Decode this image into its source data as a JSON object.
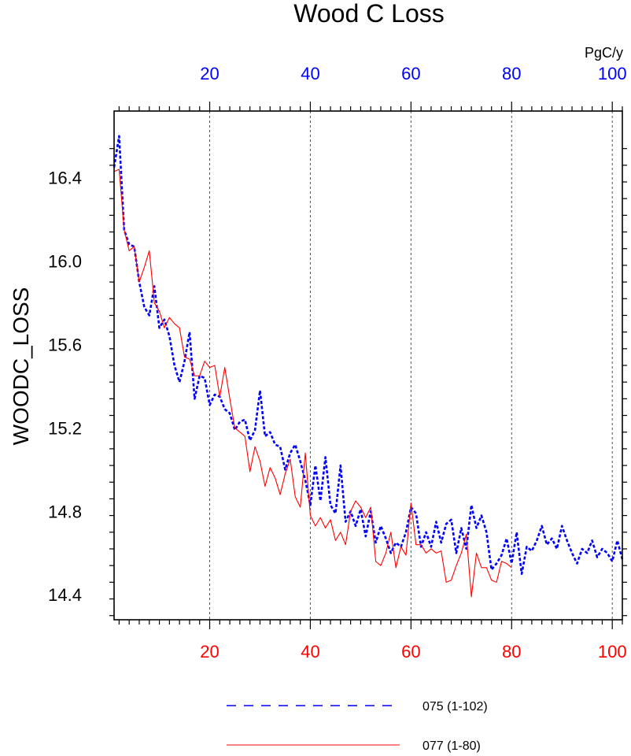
{
  "chart_data": {
    "type": "line",
    "title": "Wood C Loss",
    "ylabel": "WOODC_LOSS",
    "units": "PgC/y",
    "xlim": [
      1,
      102
    ],
    "ylim": [
      14.28,
      16.72
    ],
    "x_ticks": [
      20,
      40,
      60,
      80,
      100
    ],
    "y_ticks": [
      14.4,
      14.8,
      15.2,
      15.6,
      16.0,
      16.4
    ],
    "y_tick_labels": [
      "14.4",
      "14.8",
      "15.2",
      "15.6",
      "16.0",
      "16.4"
    ],
    "grid": "vertical dashed at major x ticks",
    "legend_position": "bottom",
    "series": [
      {
        "name": "075 (1-102)",
        "color": "#0000ff",
        "style": "dashed",
        "axis": "top",
        "x_range": [
          1,
          102
        ],
        "values": [
          16.45,
          16.6,
          16.15,
          16.08,
          16.07,
          15.9,
          15.78,
          15.74,
          15.88,
          15.68,
          15.72,
          15.64,
          15.5,
          15.42,
          15.52,
          15.66,
          15.34,
          15.45,
          15.44,
          15.31,
          15.36,
          15.35,
          15.29,
          15.27,
          15.19,
          15.23,
          15.24,
          15.14,
          15.19,
          15.38,
          15.16,
          15.18,
          15.12,
          15.11,
          15.0,
          15.08,
          15.12,
          15.04,
          14.95,
          14.83,
          15.02,
          14.85,
          15.06,
          14.83,
          14.79,
          15.02,
          14.75,
          14.8,
          14.73,
          14.81,
          14.68,
          14.8,
          14.65,
          14.73,
          14.67,
          14.6,
          14.65,
          14.63,
          14.7,
          14.82,
          14.79,
          14.63,
          14.7,
          14.63,
          14.75,
          14.65,
          14.74,
          14.76,
          14.6,
          14.72,
          14.62,
          14.83,
          14.72,
          14.78,
          14.7,
          14.52,
          14.55,
          14.59,
          14.67,
          14.55,
          14.7,
          14.5,
          14.63,
          14.61,
          14.66,
          14.73,
          14.64,
          14.67,
          14.62,
          14.73,
          14.66,
          14.6,
          14.55,
          14.62,
          14.6,
          14.66,
          14.58,
          14.62,
          14.6,
          14.56,
          14.66,
          14.57
        ]
      },
      {
        "name": "077 (1-80)",
        "color": "#ff0000",
        "style": "solid",
        "axis": "bottom",
        "x_range": [
          1,
          80
        ],
        "values": [
          16.43,
          16.44,
          16.15,
          16.05,
          16.07,
          15.9,
          15.97,
          16.05,
          15.8,
          15.76,
          15.68,
          15.73,
          15.7,
          15.68,
          15.54,
          15.53,
          15.45,
          15.45,
          15.52,
          15.49,
          15.5,
          15.35,
          15.49,
          15.34,
          15.2,
          15.18,
          15.16,
          14.99,
          15.11,
          15.04,
          14.92,
          15.01,
          14.96,
          14.88,
          14.98,
          15.05,
          14.87,
          14.82,
          15.08,
          14.78,
          14.73,
          14.77,
          14.72,
          14.76,
          14.66,
          14.7,
          14.64,
          14.8,
          14.85,
          14.82,
          14.77,
          14.82,
          14.56,
          14.54,
          14.6,
          14.7,
          14.53,
          14.63,
          14.59,
          14.84,
          14.64,
          14.64,
          14.6,
          14.62,
          14.6,
          14.61,
          14.46,
          14.47,
          14.54,
          14.6,
          14.69,
          14.39,
          14.6,
          14.53,
          14.53,
          14.47,
          14.46,
          14.56,
          14.55,
          14.53
        ]
      }
    ]
  }
}
